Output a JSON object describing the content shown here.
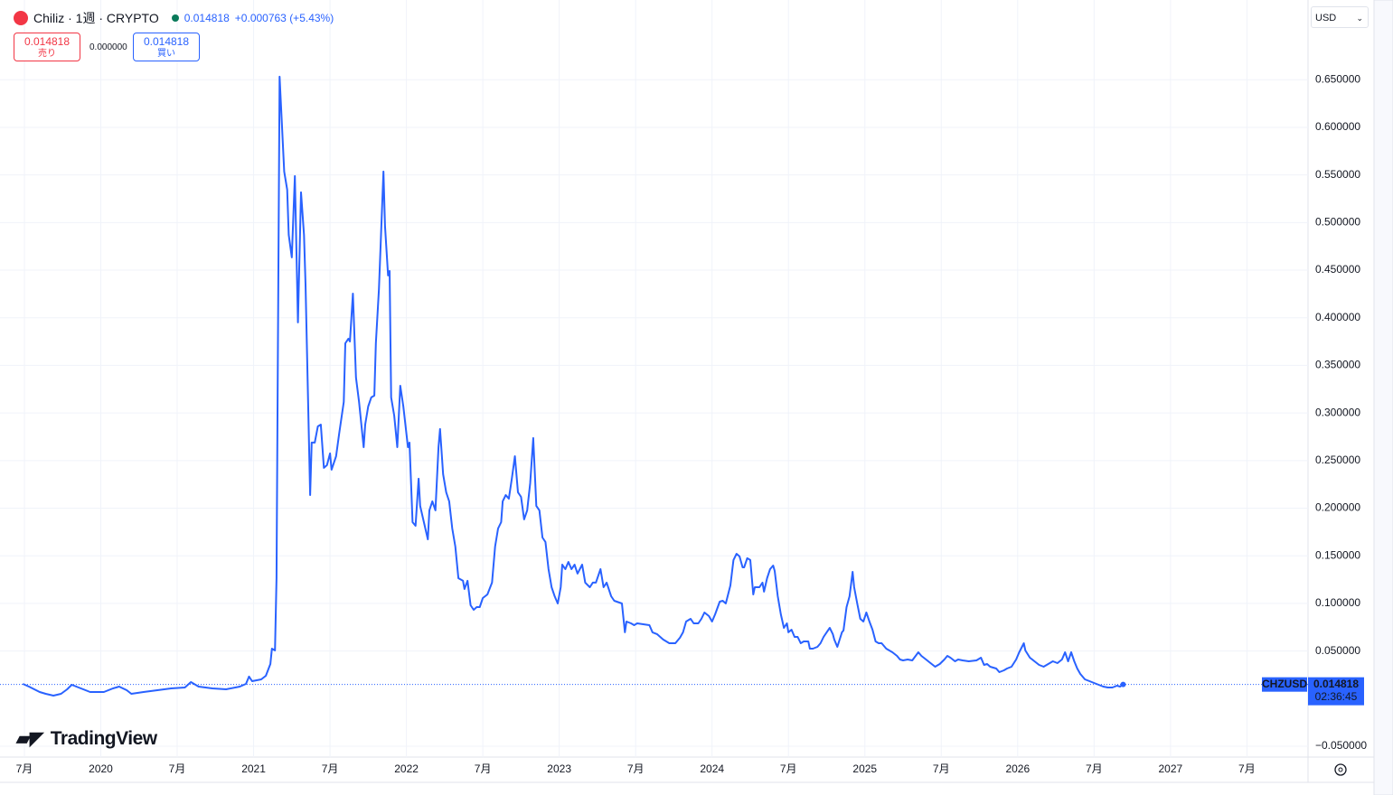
{
  "header": {
    "symbol": "Chiliz · 1週 · CRYPTO",
    "price": "0.014818",
    "change": "+0.000763 (+5.43%)"
  },
  "trade": {
    "sell_price": "0.014818",
    "sell_label": "売り",
    "spread": "0.000000",
    "buy_price": "0.014818",
    "buy_label": "買い"
  },
  "currency": "USD",
  "logo": "TradingView",
  "price_label": {
    "symbol": "CHZUSD",
    "price": "0.014818",
    "countdown": "02:36:45"
  },
  "chart_data": {
    "type": "line",
    "grid": true,
    "xlim": [
      2019.37,
      2027.9
    ],
    "xticks": [
      {
        "value": 2019.5,
        "label": "7月"
      },
      {
        "value": 2020,
        "label": "2020"
      },
      {
        "value": 2020.5,
        "label": "7月"
      },
      {
        "value": 2021,
        "label": "2021"
      },
      {
        "value": 2021.5,
        "label": "7月"
      },
      {
        "value": 2022,
        "label": "2022"
      },
      {
        "value": 2022.5,
        "label": "7月"
      },
      {
        "value": 2023,
        "label": "2023"
      },
      {
        "value": 2023.5,
        "label": "7月"
      },
      {
        "value": 2024,
        "label": "2024"
      },
      {
        "value": 2024.5,
        "label": "7月"
      },
      {
        "value": 2025,
        "label": "2025"
      },
      {
        "value": 2025.5,
        "label": "7月"
      },
      {
        "value": 2026,
        "label": "2026"
      },
      {
        "value": 2026.5,
        "label": "7月"
      },
      {
        "value": 2027,
        "label": "2027"
      },
      {
        "value": 2027.5,
        "label": "7月"
      }
    ],
    "ylim": [
      -0.0614,
      0.729
    ],
    "yticks": [
      {
        "value": 0.65,
        "label": "0.650000"
      },
      {
        "value": 0.6,
        "label": "0.600000"
      },
      {
        "value": 0.55,
        "label": "0.550000"
      },
      {
        "value": 0.5,
        "label": "0.500000"
      },
      {
        "value": 0.45,
        "label": "0.450000"
      },
      {
        "value": 0.4,
        "label": "0.400000"
      },
      {
        "value": 0.35,
        "label": "0.350000"
      },
      {
        "value": 0.3,
        "label": "0.300000"
      },
      {
        "value": 0.25,
        "label": "0.250000"
      },
      {
        "value": 0.2,
        "label": "0.200000"
      },
      {
        "value": 0.15,
        "label": "0.150000"
      },
      {
        "value": 0.1,
        "label": "0.100000"
      },
      {
        "value": 0.05,
        "label": "0.050000"
      },
      {
        "value": -0.05,
        "label": "−0.050000"
      }
    ],
    "series": [
      {
        "name": "CHZUSD",
        "color": "#2962ff",
        "x": [
          2019.49,
          2019.53,
          2019.6,
          2019.64,
          2019.69,
          2019.74,
          2019.78,
          2019.81,
          2019.87,
          2019.93,
          2020.02,
          2020.08,
          2020.12,
          2020.17,
          2020.2,
          2020.28,
          2020.37,
          2020.46,
          2020.55,
          2020.59,
          2020.64,
          2020.73,
          2020.82,
          2020.91,
          2020.95,
          2020.97,
          2020.99,
          2021.05,
          2021.08,
          2021.11,
          2021.12,
          2021.14,
          2021.15,
          2021.16,
          2021.17,
          2021.2,
          2021.22,
          2021.23,
          2021.25,
          2021.27,
          2021.29,
          2021.31,
          2021.33,
          2021.34,
          2021.37,
          2021.38,
          2021.4,
          2021.42,
          2021.44,
          2021.46,
          2021.48,
          2021.5,
          2021.51,
          2021.54,
          2021.56,
          2021.59,
          2021.6,
          2021.62,
          2021.63,
          2021.65,
          2021.67,
          2021.69,
          2021.72,
          2021.73,
          2021.75,
          2021.77,
          2021.79,
          2021.8,
          2021.82,
          2021.85,
          2021.86,
          2021.88,
          2021.89,
          2021.9,
          2021.92,
          2021.94,
          2021.96,
          2021.98,
          2022.01,
          2022.02,
          2022.04,
          2022.06,
          2022.08,
          2022.09,
          2022.11,
          2022.14,
          2022.15,
          2022.17,
          2022.19,
          2022.21,
          2022.22,
          2022.24,
          2022.26,
          2022.28,
          2022.3,
          2022.32,
          2022.34,
          2022.37,
          2022.38,
          2022.4,
          2022.42,
          2022.44,
          2022.46,
          2022.48,
          2022.5,
          2022.53,
          2022.56,
          2022.58,
          2022.6,
          2022.62,
          2022.63,
          2022.65,
          2022.67,
          2022.69,
          2022.71,
          2022.73,
          2022.75,
          2022.77,
          2022.79,
          2022.81,
          2022.83,
          2022.85,
          2022.87,
          2022.89,
          2022.91,
          2022.93,
          2022.95,
          2022.97,
          2022.99,
          2023.01,
          2023.02,
          2023.04,
          2023.06,
          2023.08,
          2023.1,
          2023.12,
          2023.15,
          2023.17,
          2023.2,
          2023.22,
          2023.24,
          2023.27,
          2023.29,
          2023.31,
          2023.34,
          2023.36,
          2023.41,
          2023.43,
          2023.44,
          2023.47,
          2023.49,
          2023.51,
          2023.55,
          2023.59,
          2023.61,
          2023.64,
          2023.68,
          2023.72,
          2023.76,
          2023.79,
          2023.81,
          2023.83,
          2023.86,
          2023.88,
          2023.91,
          2023.93,
          2023.95,
          2023.98,
          2024.0,
          2024.02,
          2024.05,
          2024.07,
          2024.09,
          2024.12,
          2024.14,
          2024.16,
          2024.18,
          2024.2,
          2024.21,
          2024.23,
          2024.25,
          2024.27,
          2024.28,
          2024.31,
          2024.33,
          2024.34,
          2024.36,
          2024.38,
          2024.4,
          2024.41,
          2024.43,
          2024.45,
          2024.47,
          2024.49,
          2024.5,
          2024.52,
          2024.54,
          2024.56,
          2024.58,
          2024.6,
          2024.63,
          2024.64,
          2024.66,
          2024.69,
          2024.71,
          2024.73,
          2024.75,
          2024.77,
          2024.79,
          2024.8,
          2024.82,
          2024.85,
          2024.86,
          2024.88,
          2024.9,
          2024.92,
          2024.93,
          2024.95,
          2024.97,
          2024.99,
          2025.01,
          2025.03,
          2025.05,
          2025.07,
          2025.09,
          2025.11,
          2025.14,
          2025.16,
          2025.18,
          2025.21,
          2025.23,
          2025.25,
          2025.28,
          2025.31,
          2025.35,
          2025.37,
          2025.4,
          2025.43,
          2025.46,
          2025.49,
          2025.52,
          2025.54,
          2025.56,
          2025.59,
          2025.61,
          2025.64,
          2025.68,
          2025.73,
          2025.76,
          2025.78,
          2025.8,
          2025.82,
          2025.86,
          2025.88,
          2025.91,
          2025.93,
          2025.96,
          2025.99,
          2026.01,
          2026.04,
          2026.05,
          2026.08,
          2026.11,
          2026.14,
          2026.17,
          2026.2,
          2026.23,
          2026.26,
          2026.29,
          2026.31,
          2026.33,
          2026.35,
          2026.37,
          2026.39,
          2026.41,
          2026.44,
          2026.47,
          2026.5,
          2026.53,
          2026.56,
          2026.59,
          2026.62,
          2026.65,
          2026.67,
          2026.69
        ],
        "values": [
          0.0155,
          0.0126,
          0.0069,
          0.005,
          0.0031,
          0.005,
          0.0098,
          0.0145,
          0.0107,
          0.0069,
          0.0069,
          0.0107,
          0.0126,
          0.0088,
          0.005,
          0.0069,
          0.0088,
          0.0107,
          0.0117,
          0.0174,
          0.0126,
          0.0107,
          0.0098,
          0.0126,
          0.0155,
          0.0231,
          0.0183,
          0.0202,
          0.024,
          0.0363,
          0.0525,
          0.0506,
          0.1265,
          0.3922,
          0.6532,
          0.5536,
          0.5346,
          0.4871,
          0.4634,
          0.5488,
          0.3951,
          0.5317,
          0.4871,
          0.4349,
          0.2138,
          0.2689,
          0.2689,
          0.2859,
          0.2878,
          0.2423,
          0.2452,
          0.2575,
          0.2404,
          0.2546,
          0.2783,
          0.3116,
          0.3732,
          0.378,
          0.3751,
          0.4254,
          0.3372,
          0.3116,
          0.2641,
          0.2878,
          0.3068,
          0.3163,
          0.3182,
          0.3732,
          0.4302,
          0.5536,
          0.4966,
          0.4444,
          0.4492,
          0.3163,
          0.2973,
          0.2641,
          0.3286,
          0.3068,
          0.2641,
          0.2689,
          0.1853,
          0.1815,
          0.2309,
          0.2024,
          0.1882,
          0.1673,
          0.1977,
          0.2072,
          0.1977,
          0.2641,
          0.2831,
          0.2357,
          0.2167,
          0.2072,
          0.1787,
          0.1597,
          0.1265,
          0.1237,
          0.1151,
          0.1237,
          0.098,
          0.0933,
          0.0961,
          0.0961,
          0.1056,
          0.1094,
          0.1218,
          0.1597,
          0.1787,
          0.1853,
          0.2072,
          0.2138,
          0.21,
          0.2309,
          0.2546,
          0.2167,
          0.2119,
          0.1882,
          0.1977,
          0.2261,
          0.2736,
          0.2024,
          0.1977,
          0.1692,
          0.1645,
          0.136,
          0.117,
          0.1075,
          0.0999,
          0.117,
          0.1407,
          0.136,
          0.1436,
          0.136,
          0.1407,
          0.1313,
          0.1407,
          0.1218,
          0.117,
          0.1218,
          0.1218,
          0.136,
          0.117,
          0.1218,
          0.1075,
          0.1028,
          0.0999,
          0.0696,
          0.0809,
          0.079,
          0.0771,
          0.079,
          0.0781,
          0.0771,
          0.0696,
          0.0677,
          0.062,
          0.0582,
          0.0582,
          0.0639,
          0.0696,
          0.0809,
          0.0838,
          0.079,
          0.079,
          0.0838,
          0.0904,
          0.0866,
          0.0809,
          0.0885,
          0.1018,
          0.1028,
          0.0999,
          0.1189,
          0.1455,
          0.1521,
          0.1493,
          0.1379,
          0.1379,
          0.1474,
          0.1455,
          0.1094,
          0.117,
          0.117,
          0.1218,
          0.1123,
          0.1265,
          0.136,
          0.1398,
          0.1341,
          0.1075,
          0.0885,
          0.0743,
          0.079,
          0.0696,
          0.0724,
          0.0648,
          0.0648,
          0.0582,
          0.0601,
          0.0601,
          0.0525,
          0.0525,
          0.0544,
          0.0582,
          0.0648,
          0.0696,
          0.0743,
          0.0677,
          0.062,
          0.0544,
          0.0696,
          0.0715,
          0.0961,
          0.1075,
          0.1331,
          0.117,
          0.0999,
          0.0838,
          0.0809,
          0.0904,
          0.0809,
          0.0724,
          0.0601,
          0.0582,
          0.0582,
          0.0525,
          0.0506,
          0.0487,
          0.0449,
          0.0411,
          0.0401,
          0.0411,
          0.0401,
          0.0487,
          0.0449,
          0.0411,
          0.0373,
          0.0335,
          0.0363,
          0.0411,
          0.0449,
          0.043,
          0.0392,
          0.0411,
          0.0401,
          0.0392,
          0.0401,
          0.043,
          0.0354,
          0.0363,
          0.0335,
          0.0316,
          0.0278,
          0.0297,
          0.0316,
          0.0335,
          0.0411,
          0.0487,
          0.0582,
          0.0506,
          0.043,
          0.0392,
          0.0354,
          0.0335,
          0.0363,
          0.0392,
          0.0373,
          0.0411,
          0.0487,
          0.0392,
          0.0487,
          0.0392,
          0.0316,
          0.0259,
          0.0202,
          0.0183,
          0.0164,
          0.0145,
          0.0126,
          0.0117,
          0.0117,
          0.0136,
          0.0126,
          0.014818
        ]
      }
    ]
  }
}
